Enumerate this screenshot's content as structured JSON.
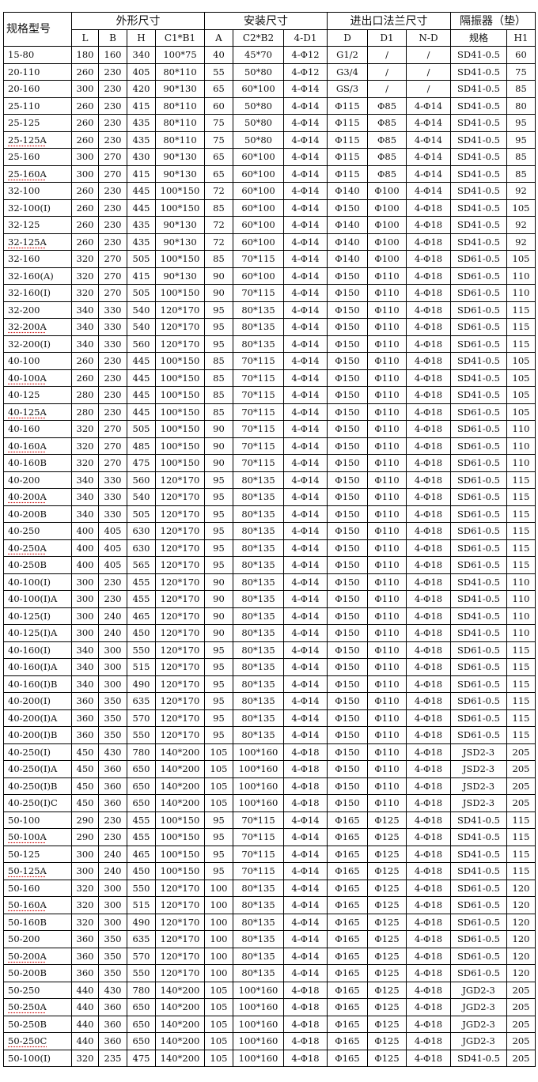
{
  "table": {
    "header_groups": {
      "model": "规格型号",
      "outline": "外形尺寸",
      "install": "安装尺寸",
      "flange": "进出口法兰尺寸",
      "isolator": "隔振器（垫）"
    },
    "sub_headers": [
      "L",
      "B",
      "H",
      "C1*B1",
      "A",
      "C2*B2",
      "4-D1",
      "D",
      "D1",
      "N-D",
      "规格",
      "H1"
    ],
    "spellcheck_underline_color": "#cc0000",
    "rows": [
      {
        "c": [
          "15-80",
          "180",
          "160",
          "340",
          "100*75",
          "40",
          "45*70",
          "4-Φ12",
          "G1/2",
          "/",
          "/",
          "SD41-0.5",
          "60"
        ]
      },
      {
        "c": [
          "20-110",
          "260",
          "230",
          "405",
          "80*110",
          "55",
          "50*80",
          "4-Φ12",
          "G3/4",
          "/",
          "/",
          "SD41-0.5",
          "75"
        ]
      },
      {
        "c": [
          "20-160",
          "300",
          "230",
          "420",
          "90*130",
          "65",
          "60*100",
          "4-Φ14",
          "GS/3",
          "/",
          "/",
          "SD41-0.5",
          "85"
        ]
      },
      {
        "c": [
          "25-110",
          "260",
          "230",
          "415",
          "80*110",
          "60",
          "50*80",
          "4-Φ14",
          "Φ115",
          "Φ85",
          "4-Φ14",
          "SD41-0.5",
          "80"
        ]
      },
      {
        "c": [
          "25-125",
          "260",
          "230",
          "435",
          "80*110",
          "75",
          "50*80",
          "4-Φ14",
          "Φ115",
          "Φ85",
          "4-Φ14",
          "SD41-0.5",
          "95"
        ]
      },
      {
        "c": [
          "25-125A",
          "260",
          "230",
          "435",
          "80*110",
          "75",
          "50*80",
          "4-Φ14",
          "Φ115",
          "Φ85",
          "4-Φ14",
          "SD41-0.5",
          "95"
        ],
        "u": true
      },
      {
        "c": [
          "25-160",
          "300",
          "270",
          "430",
          "90*130",
          "65",
          "60*100",
          "4-Φ14",
          "Φ115",
          "Φ85",
          "4-Φ14",
          "SD41-0.5",
          "85"
        ]
      },
      {
        "c": [
          "25-160A",
          "300",
          "270",
          "415",
          "90*130",
          "65",
          "60*100",
          "4-Φ14",
          "Φ115",
          "Φ85",
          "4-Φ14",
          "SD41-0.5",
          "85"
        ],
        "u": true
      },
      {
        "c": [
          "32-100",
          "260",
          "230",
          "445",
          "100*150",
          "72",
          "60*100",
          "4-Φ14",
          "Φ140",
          "Φ100",
          "4-Φ14",
          "SD41-0.5",
          "92"
        ]
      },
      {
        "c": [
          "32-100(I)",
          "260",
          "230",
          "445",
          "100*150",
          "85",
          "60*100",
          "4-Φ14",
          "Φ150",
          "Φ100",
          "4-Φ18",
          "SD41-0.5",
          "105"
        ]
      },
      {
        "c": [
          "32-125",
          "260",
          "230",
          "435",
          "90*130",
          "72",
          "60*100",
          "4-Φ14",
          "Φ140",
          "Φ100",
          "4-Φ18",
          "SD41-0.5",
          "92"
        ]
      },
      {
        "c": [
          "32-125A",
          "260",
          "230",
          "435",
          "90*130",
          "72",
          "60*100",
          "4-Φ14",
          "Φ140",
          "Φ100",
          "4-Φ18",
          "SD41-0.5",
          "92"
        ],
        "u": true
      },
      {
        "c": [
          "32-160",
          "320",
          "270",
          "505",
          "100*150",
          "85",
          "70*115",
          "4-Φ14",
          "Φ140",
          "Φ100",
          "4-Φ18",
          "SD61-0.5",
          "105"
        ]
      },
      {
        "c": [
          "32-160(A)",
          "320",
          "270",
          "415",
          "90*130",
          "90",
          "60*100",
          "4-Φ14",
          "Φ150",
          "Φ110",
          "4-Φ18",
          "SD61-0.5",
          "110"
        ]
      },
      {
        "c": [
          "32-160(I)",
          "320",
          "270",
          "505",
          "100*150",
          "90",
          "70*115",
          "4-Φ14",
          "Φ150",
          "Φ110",
          "4-Φ18",
          "SD61-0.5",
          "110"
        ]
      },
      {
        "c": [
          "32-200",
          "340",
          "330",
          "540",
          "120*170",
          "95",
          "80*135",
          "4-Φ14",
          "Φ150",
          "Φ110",
          "4-Φ18",
          "SD61-0.5",
          "115"
        ]
      },
      {
        "c": [
          "32-200A",
          "340",
          "330",
          "540",
          "120*170",
          "95",
          "80*135",
          "4-Φ14",
          "Φ150",
          "Φ110",
          "4-Φ18",
          "SD61-0.5",
          "115"
        ],
        "u": true
      },
      {
        "c": [
          "32-200(I)",
          "340",
          "330",
          "560",
          "120*170",
          "95",
          "80*135",
          "4-Φ14",
          "Φ150",
          "Φ110",
          "4-Φ18",
          "SD61-0.5",
          "115"
        ]
      },
      {
        "c": [
          "40-100",
          "260",
          "230",
          "445",
          "100*150",
          "85",
          "70*115",
          "4-Φ14",
          "Φ150",
          "Φ110",
          "4-Φ18",
          "SD41-0.5",
          "105"
        ]
      },
      {
        "c": [
          "40-100A",
          "260",
          "230",
          "445",
          "100*150",
          "85",
          "70*115",
          "4-Φ14",
          "Φ150",
          "Φ110",
          "4-Φ18",
          "SD41-0.5",
          "105"
        ],
        "u": true
      },
      {
        "c": [
          "40-125",
          "280",
          "230",
          "445",
          "100*150",
          "85",
          "70*115",
          "4-Φ14",
          "Φ150",
          "Φ110",
          "4-Φ18",
          "SD41-0.5",
          "105"
        ]
      },
      {
        "c": [
          "40-125A",
          "280",
          "230",
          "445",
          "100*150",
          "85",
          "70*115",
          "4-Φ14",
          "Φ150",
          "Φ110",
          "4-Φ18",
          "SD61-0.5",
          "105"
        ],
        "u": true
      },
      {
        "c": [
          "40-160",
          "320",
          "270",
          "505",
          "100*150",
          "90",
          "70*115",
          "4-Φ14",
          "Φ150",
          "Φ110",
          "4-Φ18",
          "SD61-0.5",
          "110"
        ]
      },
      {
        "c": [
          "40-160A",
          "320",
          "270",
          "485",
          "100*150",
          "90",
          "70*115",
          "4-Φ14",
          "Φ150",
          "Φ110",
          "4-Φ18",
          "SD61-0.5",
          "110"
        ],
        "u": true
      },
      {
        "c": [
          "40-160B",
          "320",
          "270",
          "475",
          "100*150",
          "90",
          "70*115",
          "4-Φ14",
          "Φ150",
          "Φ110",
          "4-Φ18",
          "SD61-0.5",
          "110"
        ]
      },
      {
        "c": [
          "40-200",
          "340",
          "330",
          "560",
          "120*170",
          "95",
          "80*135",
          "4-Φ14",
          "Φ150",
          "Φ110",
          "4-Φ18",
          "SD61-0.5",
          "115"
        ]
      },
      {
        "c": [
          "40-200A",
          "340",
          "330",
          "540",
          "120*170",
          "95",
          "80*135",
          "4-Φ14",
          "Φ150",
          "Φ110",
          "4-Φ18",
          "SD61-0.5",
          "115"
        ],
        "u": true
      },
      {
        "c": [
          "40-200B",
          "340",
          "330",
          "505",
          "120*170",
          "95",
          "80*135",
          "4-Φ14",
          "Φ150",
          "Φ110",
          "4-Φ18",
          "SD61-0.5",
          "115"
        ]
      },
      {
        "c": [
          "40-250",
          "400",
          "405",
          "630",
          "120*170",
          "95",
          "80*135",
          "4-Φ14",
          "Φ150",
          "Φ110",
          "4-Φ18",
          "SD61-0.5",
          "115"
        ]
      },
      {
        "c": [
          "40-250A",
          "400",
          "405",
          "630",
          "120*170",
          "95",
          "80*135",
          "4-Φ14",
          "Φ150",
          "Φ110",
          "4-Φ18",
          "SD61-0.5",
          "115"
        ],
        "u": true
      },
      {
        "c": [
          "40-250B",
          "400",
          "405",
          "565",
          "120*170",
          "95",
          "80*135",
          "4-Φ14",
          "Φ150",
          "Φ110",
          "4-Φ18",
          "SD61-0.5",
          "115"
        ]
      },
      {
        "c": [
          "40-100(I)",
          "300",
          "230",
          "455",
          "120*170",
          "90",
          "80*135",
          "4-Φ14",
          "Φ150",
          "Φ110",
          "4-Φ18",
          "SD41-0.5",
          "110"
        ]
      },
      {
        "c": [
          "40-100(I)A",
          "300",
          "230",
          "455",
          "120*170",
          "90",
          "80*135",
          "4-Φ14",
          "Φ150",
          "Φ110",
          "4-Φ18",
          "SD41-0.5",
          "110"
        ]
      },
      {
        "c": [
          "40-125(I)",
          "300",
          "240",
          "465",
          "120*170",
          "90",
          "80*135",
          "4-Φ14",
          "Φ150",
          "Φ110",
          "4-Φ18",
          "SD41-0.5",
          "110"
        ]
      },
      {
        "c": [
          "40-125(I)A",
          "300",
          "240",
          "450",
          "120*170",
          "90",
          "80*135",
          "4-Φ14",
          "Φ150",
          "Φ110",
          "4-Φ18",
          "SD41-0.5",
          "110"
        ]
      },
      {
        "c": [
          "40-160(I)",
          "340",
          "300",
          "550",
          "120*170",
          "95",
          "80*135",
          "4-Φ14",
          "Φ150",
          "Φ110",
          "4-Φ18",
          "SD61-0.5",
          "115"
        ]
      },
      {
        "c": [
          "40-160(I)A",
          "340",
          "300",
          "515",
          "120*170",
          "95",
          "80*135",
          "4-Φ14",
          "Φ150",
          "Φ110",
          "4-Φ18",
          "SD61-0.5",
          "115"
        ]
      },
      {
        "c": [
          "40-160(I)B",
          "340",
          "300",
          "490",
          "120*170",
          "95",
          "80*135",
          "4-Φ14",
          "Φ150",
          "Φ110",
          "4-Φ18",
          "SD61-0.5",
          "115"
        ]
      },
      {
        "c": [
          "40-200(I)",
          "360",
          "350",
          "635",
          "120*170",
          "95",
          "80*135",
          "4-Φ14",
          "Φ150",
          "Φ110",
          "4-Φ18",
          "SD61-0.5",
          "115"
        ]
      },
      {
        "c": [
          "40-200(I)A",
          "360",
          "350",
          "570",
          "120*170",
          "95",
          "80*135",
          "4-Φ14",
          "Φ150",
          "Φ110",
          "4-Φ18",
          "SD61-0.5",
          "115"
        ]
      },
      {
        "c": [
          "40-200(I)B",
          "360",
          "350",
          "550",
          "120*170",
          "95",
          "80*135",
          "4-Φ14",
          "Φ150",
          "Φ110",
          "4-Φ18",
          "SD61-0.5",
          "115"
        ]
      },
      {
        "c": [
          "40-250(I)",
          "450",
          "430",
          "780",
          "140*200",
          "105",
          "100*160",
          "4-Φ18",
          "Φ150",
          "Φ110",
          "4-Φ18",
          "JSD2-3",
          "205"
        ]
      },
      {
        "c": [
          "40-250(I)A",
          "450",
          "360",
          "650",
          "140*200",
          "105",
          "100*160",
          "4-Φ18",
          "Φ150",
          "Φ110",
          "4-Φ18",
          "JSD2-3",
          "205"
        ]
      },
      {
        "c": [
          "40-250(I)B",
          "450",
          "360",
          "650",
          "140*200",
          "105",
          "100*160",
          "4-Φ18",
          "Φ150",
          "Φ110",
          "4-Φ18",
          "JSD2-3",
          "205"
        ]
      },
      {
        "c": [
          "40-250(I)C",
          "450",
          "360",
          "650",
          "140*200",
          "105",
          "100*160",
          "4-Φ18",
          "Φ150",
          "Φ110",
          "4-Φ18",
          "JSD2-3",
          "205"
        ]
      },
      {
        "c": [
          "50-100",
          "290",
          "230",
          "455",
          "100*150",
          "95",
          "70*115",
          "4-Φ14",
          "Φ165",
          "Φ125",
          "4-Φ18",
          "SD41-0.5",
          "115"
        ]
      },
      {
        "c": [
          "50-100A",
          "290",
          "230",
          "455",
          "100*150",
          "95",
          "70*115",
          "4-Φ14",
          "Φ165",
          "Φ125",
          "4-Φ18",
          "SD41-0.5",
          "115"
        ],
        "u": true
      },
      {
        "c": [
          "50-125",
          "300",
          "240",
          "465",
          "100*150",
          "95",
          "70*115",
          "4-Φ14",
          "Φ165",
          "Φ125",
          "4-Φ18",
          "SD41-0.5",
          "115"
        ]
      },
      {
        "c": [
          "50-125A",
          "300",
          "240",
          "450",
          "100*150",
          "95",
          "70*115",
          "4-Φ14",
          "Φ165",
          "Φ125",
          "4-Φ18",
          "SD41-0.5",
          "115"
        ],
        "u": true
      },
      {
        "c": [
          "50-160",
          "320",
          "300",
          "550",
          "120*170",
          "100",
          "80*135",
          "4-Φ14",
          "Φ165",
          "Φ125",
          "4-Φ18",
          "SD61-0.5",
          "120"
        ]
      },
      {
        "c": [
          "50-160A",
          "320",
          "300",
          "515",
          "120*170",
          "100",
          "80*135",
          "4-Φ14",
          "Φ165",
          "Φ125",
          "4-Φ18",
          "SD61-0.5",
          "120"
        ],
        "u": true
      },
      {
        "c": [
          "50-160B",
          "320",
          "300",
          "490",
          "120*170",
          "100",
          "80*135",
          "4-Φ14",
          "Φ165",
          "Φ125",
          "4-Φ18",
          "SD61-0.5",
          "120"
        ]
      },
      {
        "c": [
          "50-200",
          "360",
          "350",
          "635",
          "120*170",
          "100",
          "80*135",
          "4-Φ14",
          "Φ165",
          "Φ125",
          "4-Φ18",
          "SD61-0.5",
          "120"
        ]
      },
      {
        "c": [
          "50-200A",
          "360",
          "350",
          "570",
          "120*170",
          "100",
          "80*135",
          "4-Φ14",
          "Φ165",
          "Φ125",
          "4-Φ18",
          "SD61-0.5",
          "120"
        ],
        "u": true
      },
      {
        "c": [
          "50-200B",
          "360",
          "350",
          "550",
          "120*170",
          "100",
          "80*135",
          "4-Φ14",
          "Φ165",
          "Φ125",
          "4-Φ18",
          "SD61-0.5",
          "120"
        ]
      },
      {
        "c": [
          "50-250",
          "440",
          "430",
          "780",
          "140*200",
          "105",
          "100*160",
          "4-Φ18",
          "Φ165",
          "Φ125",
          "4-Φ18",
          "JGD2-3",
          "205"
        ]
      },
      {
        "c": [
          "50-250A",
          "440",
          "360",
          "650",
          "140*200",
          "105",
          "100*160",
          "4-Φ18",
          "Φ165",
          "Φ125",
          "4-Φ18",
          "JGD2-3",
          "205"
        ],
        "u": true
      },
      {
        "c": [
          "50-250B",
          "440",
          "360",
          "650",
          "140*200",
          "105",
          "100*160",
          "4-Φ18",
          "Φ165",
          "Φ125",
          "4-Φ18",
          "JGD2-3",
          "205"
        ]
      },
      {
        "c": [
          "50-250C",
          "440",
          "360",
          "650",
          "140*200",
          "105",
          "100*160",
          "4-Φ18",
          "Φ165",
          "Φ125",
          "4-Φ18",
          "JGD2-3",
          "205"
        ],
        "u": true
      },
      {
        "c": [
          "50-100(I)",
          "320",
          "235",
          "475",
          "140*200",
          "105",
          "100*160",
          "4-Φ18",
          "Φ165",
          "Φ125",
          "4-Φ18",
          "SD41-0.5",
          "205"
        ]
      }
    ]
  }
}
